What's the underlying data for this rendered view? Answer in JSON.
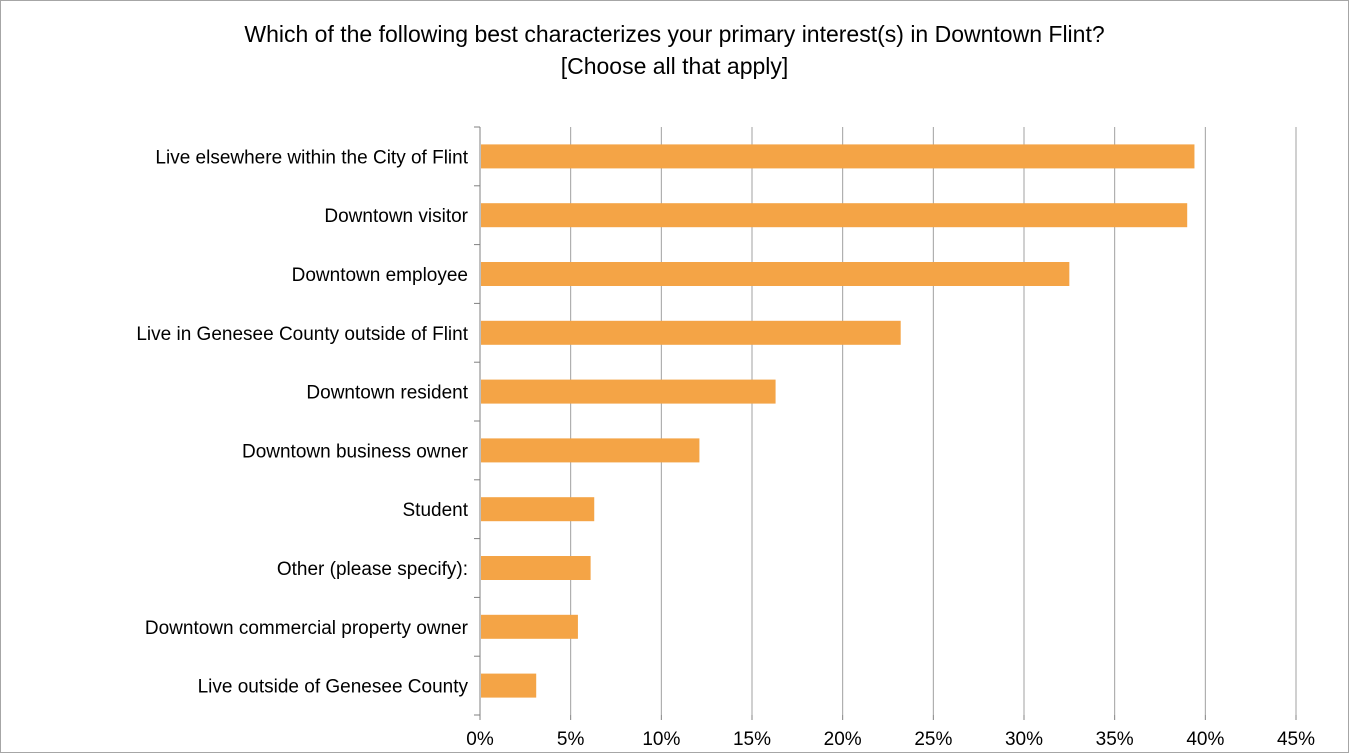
{
  "chart_data": {
    "type": "bar",
    "orientation": "horizontal",
    "title_lines": [
      "Which of the following best characterizes your primary interest(s) in Downtown Flint?",
      "[Choose all that apply]"
    ],
    "categories": [
      "Live elsewhere within the City of Flint",
      "Downtown visitor",
      "Downtown employee",
      "Live in Genesee County outside of Flint",
      "Downtown resident",
      "Downtown business owner",
      "Student",
      "Other (please specify):",
      "Downtown commercial property owner",
      "Live outside of Genesee County"
    ],
    "values": [
      39.4,
      39.0,
      32.5,
      23.2,
      16.3,
      12.1,
      6.3,
      6.1,
      5.4,
      3.1
    ],
    "xlim": [
      0,
      45
    ],
    "xticks": [
      0,
      5,
      10,
      15,
      20,
      25,
      30,
      35,
      40,
      45
    ],
    "xtick_labels": [
      "0%",
      "5%",
      "10%",
      "15%",
      "20%",
      "25%",
      "30%",
      "35%",
      "40%",
      "45%"
    ],
    "xlabel": "",
    "ylabel": "",
    "grid": "vertical major gridlines",
    "legend": "none",
    "bar_color": "#f4a446",
    "grid_color": "#a0a0a0",
    "axis_color": "#808080"
  }
}
